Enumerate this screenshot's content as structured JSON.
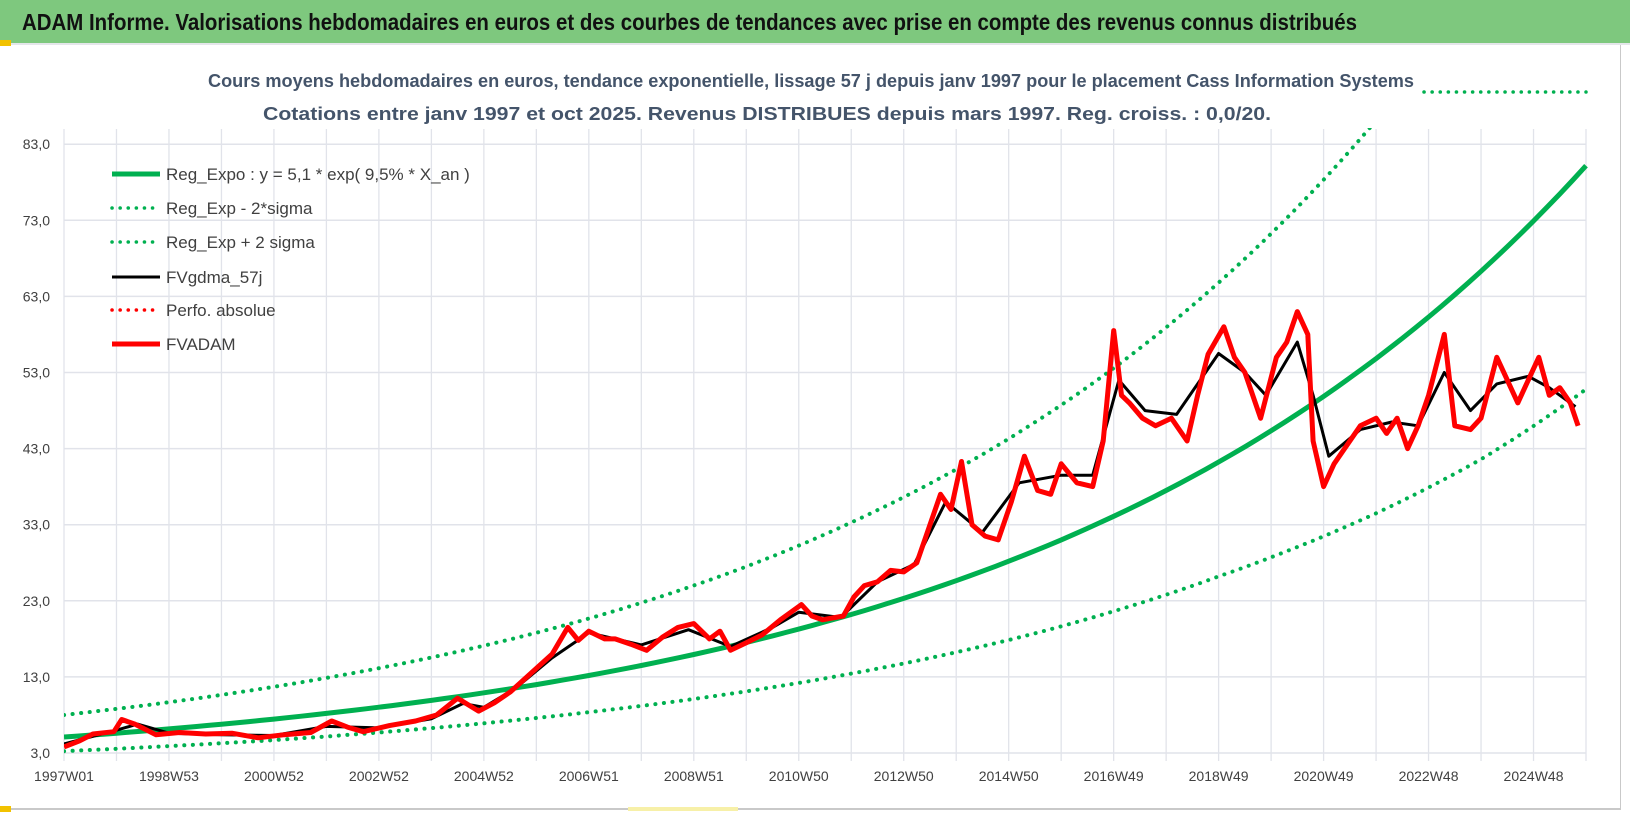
{
  "header": {
    "title": "ADAM Informe. Valorisations hebdomadaires en euros et des courbes de tendances avec prise en compte des revenus connus distribués"
  },
  "chart_data": {
    "type": "line",
    "title": "Cours moyens hebdomadaires en euros, tendance exponentielle, lissage 57 j depuis janv 1997  pour le placement Cass Information Systems",
    "subtitle": "Cotations entre janv 1997 et oct 2025. Revenus DISTRIBUES depuis mars 1997.  Reg. croiss. : 0,0/20.",
    "xlabel": "",
    "ylabel": "",
    "xlim": [
      1997,
      2026
    ],
    "ylim": [
      3,
      85
    ],
    "grid": true,
    "legend_position": "top-left",
    "x_ticks": [
      1997,
      1999,
      2001,
      2003,
      2005,
      2007,
      2009,
      2011,
      2013,
      2015,
      2017,
      2019,
      2021,
      2023,
      2025
    ],
    "x_tick_labels": [
      "1997W01",
      "1998W53",
      "2000W52",
      "2002W52",
      "2004W52",
      "2006W51",
      "2008W51",
      "2010W50",
      "2012W50",
      "2014W50",
      "2016W49",
      "2018W49",
      "2020W49",
      "2022W48",
      "2024W48"
    ],
    "y_ticks": [
      3,
      13,
      23,
      33,
      43,
      53,
      63,
      73,
      83
    ],
    "y_tick_labels": [
      "3,0",
      "13,0",
      "23,0",
      "33,0",
      "43,0",
      "53,0",
      "63,0",
      "73,0",
      "83,0"
    ],
    "colors": {
      "green": "#00b050",
      "red": "#ff0000",
      "black": "#000000"
    },
    "series": [
      {
        "name": "Reg_Expo : y = 5,1 * exp( 9,5% *  X_an )",
        "style": "solid-thick",
        "color": "#00b050",
        "a": 5.1,
        "rate": 0.095
      },
      {
        "name": "Reg_Exp - 2*sigma",
        "style": "dotted",
        "color": "#00b050",
        "points": [
          [
            1997,
            3.24
          ],
          [
            2001,
            4.7
          ],
          [
            2006,
            7.6
          ],
          [
            2010,
            11.1
          ],
          [
            2015.6,
            18.9
          ],
          [
            2019,
            26.2
          ],
          [
            2022,
            34.5
          ],
          [
            2024,
            41.6
          ],
          [
            2026,
            50.8
          ]
        ]
      },
      {
        "name": "Reg_Exp + 2 sigma",
        "style": "dotted",
        "color": "#00b050",
        "points": [
          [
            1997,
            8.0
          ],
          [
            2001,
            11.7
          ],
          [
            2006,
            18.8
          ],
          [
            2010,
            27.5
          ],
          [
            2015.6,
            46.9
          ],
          [
            2019,
            64.8
          ],
          [
            2021.9,
            85.3
          ]
        ]
      },
      {
        "name": "FVgdma_57j",
        "style": "solid",
        "color": "#000000",
        "points": [
          [
            1997.0,
            4.2
          ],
          [
            1998.0,
            6.0
          ],
          [
            1998.4,
            6.8
          ],
          [
            1999.0,
            5.6
          ],
          [
            2000.0,
            5.4
          ],
          [
            2001.0,
            5.3
          ],
          [
            2002.0,
            6.5
          ],
          [
            2003.0,
            6.3
          ],
          [
            2004.0,
            7.5
          ],
          [
            2004.6,
            9.5
          ],
          [
            2005.0,
            9.0
          ],
          [
            2005.6,
            11.5
          ],
          [
            2006.3,
            15.5
          ],
          [
            2007.0,
            18.8
          ],
          [
            2008.0,
            17.2
          ],
          [
            2008.9,
            19.2
          ],
          [
            2009.7,
            17.0
          ],
          [
            2010.5,
            19.5
          ],
          [
            2011.0,
            21.5
          ],
          [
            2011.8,
            20.8
          ],
          [
            2012.5,
            25.5
          ],
          [
            2013.2,
            27.8
          ],
          [
            2013.8,
            36.0
          ],
          [
            2014.5,
            32.0
          ],
          [
            2015.2,
            38.5
          ],
          [
            2016.0,
            39.5
          ],
          [
            2016.6,
            39.5
          ],
          [
            2017.1,
            52.0
          ],
          [
            2017.6,
            48.0
          ],
          [
            2018.2,
            47.5
          ],
          [
            2019.0,
            55.5
          ],
          [
            2019.5,
            53.0
          ],
          [
            2019.9,
            50.0
          ],
          [
            2020.5,
            57.0
          ],
          [
            2020.8,
            50.0
          ],
          [
            2021.1,
            42.0
          ],
          [
            2021.7,
            45.5
          ],
          [
            2022.3,
            46.5
          ],
          [
            2022.8,
            46.0
          ],
          [
            2023.3,
            53.0
          ],
          [
            2023.8,
            48.0
          ],
          [
            2024.3,
            51.5
          ],
          [
            2024.9,
            52.5
          ],
          [
            2025.3,
            51.0
          ],
          [
            2025.8,
            48.5
          ]
        ]
      },
      {
        "name": "Perfo. absolue",
        "style": "dotted",
        "color": "#ff0000",
        "points": []
      },
      {
        "name": "FVADAM",
        "style": "solid-thick",
        "color": "#ff0000",
        "points": [
          [
            1997.0,
            3.8
          ],
          [
            1997.3,
            4.6
          ],
          [
            1997.55,
            5.5
          ],
          [
            1997.95,
            5.8
          ],
          [
            1998.1,
            7.4
          ],
          [
            1998.35,
            6.8
          ],
          [
            1998.75,
            5.4
          ],
          [
            1999.2,
            5.7
          ],
          [
            1999.7,
            5.5
          ],
          [
            2000.2,
            5.6
          ],
          [
            2000.7,
            5.0
          ],
          [
            2001.2,
            5.4
          ],
          [
            2001.7,
            5.7
          ],
          [
            2002.1,
            7.2
          ],
          [
            2002.4,
            6.4
          ],
          [
            2002.7,
            5.8
          ],
          [
            2003.2,
            6.6
          ],
          [
            2003.7,
            7.2
          ],
          [
            2004.1,
            8.0
          ],
          [
            2004.5,
            10.2
          ],
          [
            2004.9,
            8.5
          ],
          [
            2005.2,
            9.6
          ],
          [
            2005.5,
            11.0
          ],
          [
            2005.9,
            13.5
          ],
          [
            2006.3,
            16.0
          ],
          [
            2006.6,
            19.5
          ],
          [
            2006.8,
            17.8
          ],
          [
            2007.0,
            19.0
          ],
          [
            2007.3,
            18.0
          ],
          [
            2007.5,
            18.0
          ],
          [
            2007.8,
            17.3
          ],
          [
            2008.1,
            16.5
          ],
          [
            2008.4,
            18.2
          ],
          [
            2008.7,
            19.5
          ],
          [
            2009.0,
            20.0
          ],
          [
            2009.3,
            18.0
          ],
          [
            2009.5,
            19.0
          ],
          [
            2009.7,
            16.5
          ],
          [
            2010.0,
            17.5
          ],
          [
            2010.3,
            18.5
          ],
          [
            2010.65,
            20.5
          ],
          [
            2011.05,
            22.5
          ],
          [
            2011.25,
            21.0
          ],
          [
            2011.45,
            20.5
          ],
          [
            2011.85,
            21.0
          ],
          [
            2012.05,
            23.5
          ],
          [
            2012.25,
            25.0
          ],
          [
            2012.5,
            25.5
          ],
          [
            2012.75,
            27.0
          ],
          [
            2013.0,
            26.8
          ],
          [
            2013.25,
            28.0
          ],
          [
            2013.5,
            33.0
          ],
          [
            2013.7,
            37.0
          ],
          [
            2013.9,
            35.0
          ],
          [
            2014.1,
            41.3
          ],
          [
            2014.3,
            33.0
          ],
          [
            2014.55,
            31.5
          ],
          [
            2014.8,
            31.0
          ],
          [
            2015.05,
            36.0
          ],
          [
            2015.3,
            42.0
          ],
          [
            2015.55,
            37.5
          ],
          [
            2015.8,
            37.0
          ],
          [
            2016.0,
            41.0
          ],
          [
            2016.3,
            38.5
          ],
          [
            2016.6,
            38.0
          ],
          [
            2016.8,
            44.0
          ],
          [
            2017.0,
            58.5
          ],
          [
            2017.15,
            50.0
          ],
          [
            2017.3,
            49.0
          ],
          [
            2017.55,
            47.0
          ],
          [
            2017.8,
            46.0
          ],
          [
            2018.1,
            47.0
          ],
          [
            2018.4,
            44.0
          ],
          [
            2018.6,
            50.0
          ],
          [
            2018.8,
            55.4
          ],
          [
            2019.1,
            59.0
          ],
          [
            2019.3,
            55.0
          ],
          [
            2019.5,
            53.0
          ],
          [
            2019.8,
            47.0
          ],
          [
            2020.1,
            55.0
          ],
          [
            2020.3,
            57.0
          ],
          [
            2020.5,
            61.0
          ],
          [
            2020.7,
            58.0
          ],
          [
            2020.8,
            44.0
          ],
          [
            2021.0,
            38.0
          ],
          [
            2021.2,
            41.0
          ],
          [
            2021.4,
            43.0
          ],
          [
            2021.7,
            46.0
          ],
          [
            2022.0,
            47.0
          ],
          [
            2022.2,
            45.0
          ],
          [
            2022.4,
            47.0
          ],
          [
            2022.6,
            43.0
          ],
          [
            2022.8,
            46.0
          ],
          [
            2023.0,
            50.0
          ],
          [
            2023.3,
            58.0
          ],
          [
            2023.5,
            46.0
          ],
          [
            2023.8,
            45.5
          ],
          [
            2024.0,
            47.0
          ],
          [
            2024.3,
            55.0
          ],
          [
            2024.5,
            52.0
          ],
          [
            2024.7,
            49.0
          ],
          [
            2024.9,
            52.0
          ],
          [
            2025.1,
            55.0
          ],
          [
            2025.3,
            50.0
          ],
          [
            2025.5,
            51.0
          ],
          [
            2025.7,
            49.0
          ],
          [
            2025.85,
            46.0
          ]
        ]
      }
    ]
  }
}
